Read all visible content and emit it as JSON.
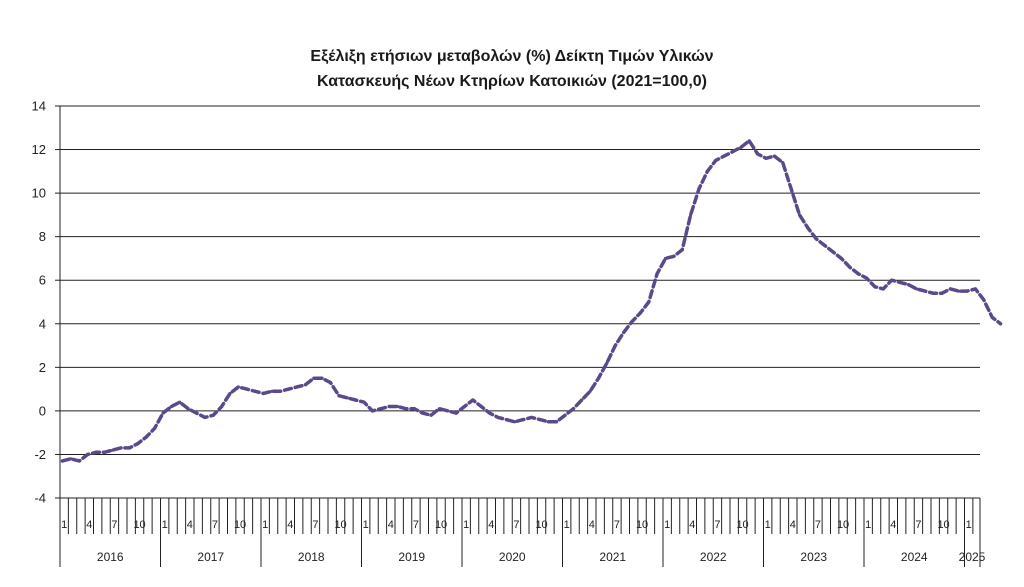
{
  "chart_data": {
    "type": "line",
    "title_lines": [
      "Εξέλιξη ετήσιων μεταβολών (%) Δείκτη Τιμών Υλικών",
      "Κατασκευής Νέων Κτηρίων Κατοικιών (2021=100,0)"
    ],
    "ylim": [
      -4,
      14
    ],
    "yticks": [
      "-4",
      "-2",
      "0",
      "2",
      "4",
      "6",
      "8",
      "10",
      "12",
      "14"
    ],
    "month_labels": [
      "1",
      "4",
      "7",
      "10"
    ],
    "years": [
      "2016",
      "2017",
      "2018",
      "2019",
      "2020",
      "2021",
      "2022",
      "2023",
      "2024",
      "2025"
    ],
    "grid": true,
    "line_color": "#5B4A8B",
    "line_style": "dashed",
    "series": [
      {
        "values": [
          -2.3,
          -2.2,
          -2.3,
          -2.0,
          -1.9,
          -1.9,
          -1.8,
          -1.7,
          -1.7,
          -1.5,
          -1.2,
          -0.8,
          -0.1,
          0.2,
          0.4,
          0.1,
          -0.1,
          -0.3,
          -0.2,
          0.2,
          0.8,
          1.1,
          1.0,
          0.9,
          0.8,
          0.9,
          0.9,
          1.0,
          1.1,
          1.2,
          1.5,
          1.5,
          1.3,
          0.7,
          0.6,
          0.5,
          0.4,
          0.0,
          0.1,
          0.2,
          0.2,
          0.1,
          0.1,
          -0.1,
          -0.2,
          0.1,
          0.0,
          -0.1,
          0.2,
          0.5,
          0.2,
          -0.1,
          -0.3,
          -0.4,
          -0.5,
          -0.4,
          -0.3,
          -0.4,
          -0.5,
          -0.5,
          -0.2,
          0.1,
          0.5,
          0.9,
          1.5,
          2.2,
          3.0,
          3.6,
          4.1,
          4.5,
          5.0,
          6.3,
          7.0,
          7.1,
          7.4,
          9.0,
          10.2,
          11.0,
          11.5,
          11.7,
          11.9,
          12.1,
          12.4,
          11.8,
          11.6,
          11.7,
          11.4,
          10.2,
          9.0,
          8.4,
          7.9,
          7.6,
          7.3,
          7.0,
          6.6,
          6.3,
          6.1,
          5.7,
          5.6,
          6.0,
          5.9,
          5.8,
          5.6,
          5.5,
          5.4,
          5.4,
          5.6,
          5.5,
          5.5,
          5.6,
          5.1,
          4.3,
          4.0
        ]
      }
    ]
  }
}
